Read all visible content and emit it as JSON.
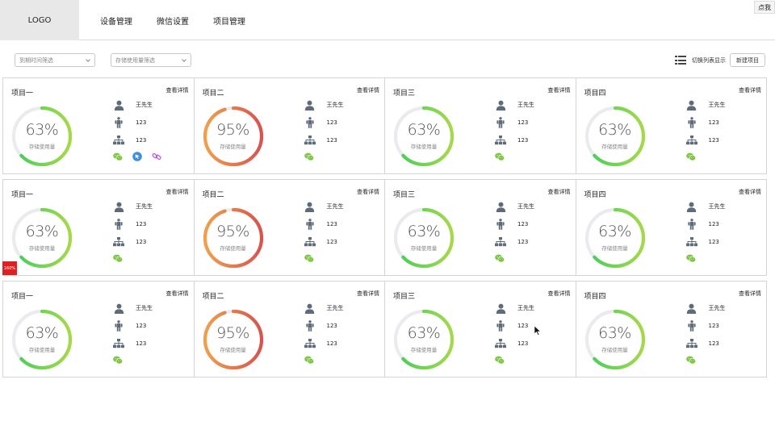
{
  "header": {
    "logo": "LOGO",
    "nav": [
      "设备管理",
      "微信设置",
      "项目管理"
    ],
    "corner_button": "点我"
  },
  "filters": {
    "expire_filter": "到期时间筛选",
    "storage_filter": "存储使用量筛选"
  },
  "toolbar": {
    "toggle_label": "切换列表显示",
    "new_project": "新建项目",
    "list_icon": "list-icon"
  },
  "detail_label": "查看详情",
  "storage_label": "存储使用量",
  "red_badge": "160%",
  "colors": {
    "ring_track": "#e9ebee",
    "green_start": "#a6d94a",
    "green_end": "#3fcf5a",
    "orange_start": "#f0a04b",
    "red_end": "#d9534f",
    "icon_gray": "#5f6b78",
    "wechat_green": "#7cc540"
  },
  "rows": [
    [
      {
        "title": "项目一",
        "percent": "63%",
        "value": 0.63,
        "scheme": "green",
        "owner": "王先生",
        "field2": "123",
        "field3": "123",
        "socials": [
          "wechat-icon",
          "pointer-badge-icon",
          "link-icon"
        ]
      },
      {
        "title": "项目二",
        "percent": "95%",
        "value": 0.95,
        "scheme": "red",
        "owner": "王先生",
        "field2": "123",
        "field3": "123",
        "socials": [
          "wechat-icon"
        ]
      },
      {
        "title": "项目三",
        "percent": "63%",
        "value": 0.63,
        "scheme": "green",
        "owner": "王先生",
        "field2": "123",
        "field3": "123",
        "socials": [
          "wechat-icon"
        ]
      },
      {
        "title": "项目四",
        "percent": "63%",
        "value": 0.63,
        "scheme": "green",
        "owner": "王先生",
        "field2": "123",
        "field3": "123",
        "socials": [
          "wechat-icon"
        ]
      }
    ],
    [
      {
        "title": "项目一",
        "percent": "63%",
        "value": 0.63,
        "scheme": "green",
        "owner": "王先生",
        "field2": "123",
        "field3": "123",
        "socials": [
          "wechat-icon"
        ]
      },
      {
        "title": "项目二",
        "percent": "95%",
        "value": 0.95,
        "scheme": "red",
        "owner": "王先生",
        "field2": "123",
        "field3": "123",
        "socials": [
          "wechat-icon"
        ]
      },
      {
        "title": "项目三",
        "percent": "63%",
        "value": 0.63,
        "scheme": "green",
        "owner": "王先生",
        "field2": "123",
        "field3": "123",
        "socials": [
          "wechat-icon"
        ]
      },
      {
        "title": "项目四",
        "percent": "63%",
        "value": 0.63,
        "scheme": "green",
        "owner": "王先生",
        "field2": "123",
        "field3": "123",
        "socials": [
          "wechat-icon"
        ]
      }
    ],
    [
      {
        "title": "项目一",
        "percent": "63%",
        "value": 0.63,
        "scheme": "green",
        "owner": "王先生",
        "field2": "123",
        "field3": "123",
        "socials": [
          "wechat-icon"
        ]
      },
      {
        "title": "项目二",
        "percent": "95%",
        "value": 0.95,
        "scheme": "red",
        "owner": "王先生",
        "field2": "123",
        "field3": "123",
        "socials": [
          "wechat-icon"
        ]
      },
      {
        "title": "项目三",
        "percent": "63%",
        "value": 0.63,
        "scheme": "green",
        "owner": "王先生",
        "field2": "123",
        "field3": "123",
        "socials": [
          "wechat-icon"
        ]
      },
      {
        "title": "项目四",
        "percent": "63%",
        "value": 0.63,
        "scheme": "green",
        "owner": "王先生",
        "field2": "123",
        "field3": "123",
        "socials": [
          "wechat-icon"
        ]
      }
    ]
  ]
}
